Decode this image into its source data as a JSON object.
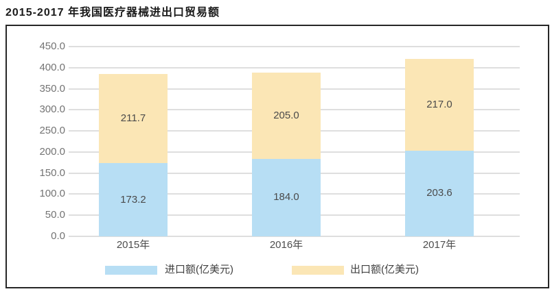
{
  "page": {
    "title": "2015-2017 年我国医疗器械进出口贸易额"
  },
  "chart_data": {
    "type": "bar",
    "stacked": true,
    "title": "2015-2017 年我国医疗器械进出口贸易额",
    "categories": [
      "2015年",
      "2016年",
      "2017年"
    ],
    "series": [
      {
        "name": "进口额(亿美元)",
        "color": "#b7def4",
        "values": [
          173.2,
          184.0,
          203.6
        ]
      },
      {
        "name": "出口额(亿美元)",
        "color": "#fbe6b5",
        "values": [
          211.7,
          205.0,
          217.0
        ]
      }
    ],
    "xlabel": "",
    "ylabel": "",
    "ylim": [
      0,
      450
    ],
    "ytick_step": 50,
    "ytick_labels": [
      "0.0",
      "50.0",
      "100.0",
      "150.0",
      "200.0",
      "250.0",
      "300.0",
      "350.0",
      "400.0",
      "450.0"
    ],
    "grid": true,
    "gridline_color": "#dedede",
    "legend_position": "bottom",
    "value_labels_decimals": 1,
    "label_color": "#4a4a4a"
  }
}
